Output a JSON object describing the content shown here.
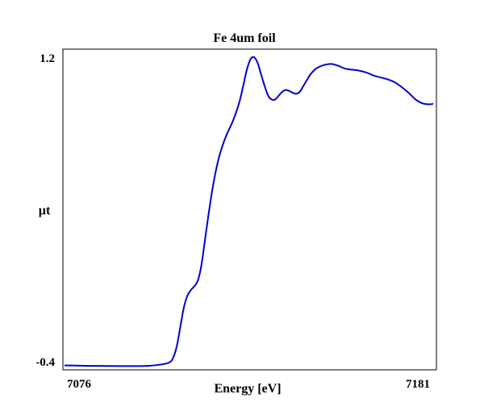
{
  "chart_data": {
    "type": "line",
    "title": "Fe 4um foil",
    "xlabel": "Energy [eV]",
    "ylabel": "µt",
    "xlim": [
      7076,
      7181
    ],
    "ylim": [
      -0.4,
      1.2
    ],
    "x_ticks": [
      "7076",
      "7181"
    ],
    "y_ticks": [
      "1.2",
      "-0.4"
    ],
    "grid": false,
    "legend": "none",
    "series": [
      {
        "color": "#0000cc",
        "x": [
          7076,
          7082,
          7088,
          7094,
          7100,
          7104,
          7106,
          7107,
          7108,
          7109,
          7110,
          7111,
          7112,
          7113,
          7114,
          7115,
          7116,
          7117,
          7118,
          7119,
          7120,
          7121,
          7122,
          7123,
          7124,
          7125,
          7126,
          7127,
          7128,
          7129,
          7130,
          7131,
          7132,
          7133,
          7134,
          7135,
          7136,
          7137,
          7138,
          7139,
          7140,
          7141,
          7142,
          7143,
          7144,
          7145,
          7146,
          7147,
          7148,
          7150,
          7152,
          7154,
          7156,
          7158,
          7160,
          7162,
          7164,
          7166,
          7168,
          7170,
          7172,
          7174,
          7176,
          7178,
          7180,
          7181
        ],
        "y": [
          -0.402,
          -0.404,
          -0.405,
          -0.406,
          -0.404,
          -0.396,
          -0.385,
          -0.36,
          -0.3,
          -0.2,
          -0.1,
          -0.04,
          -0.01,
          0.01,
          0.04,
          0.12,
          0.25,
          0.38,
          0.5,
          0.6,
          0.68,
          0.74,
          0.79,
          0.83,
          0.87,
          0.92,
          0.98,
          1.06,
          1.14,
          1.19,
          1.2,
          1.17,
          1.11,
          1.05,
          1.0,
          0.98,
          0.98,
          1.0,
          1.02,
          1.03,
          1.025,
          1.015,
          1.01,
          1.02,
          1.05,
          1.08,
          1.11,
          1.13,
          1.145,
          1.16,
          1.165,
          1.155,
          1.14,
          1.135,
          1.13,
          1.12,
          1.105,
          1.095,
          1.085,
          1.07,
          1.045,
          1.015,
          0.98,
          0.96,
          0.955,
          0.958
        ]
      }
    ]
  },
  "colors": {
    "line": "#0000cc",
    "frame": "#000000",
    "background": "#ffffff"
  }
}
